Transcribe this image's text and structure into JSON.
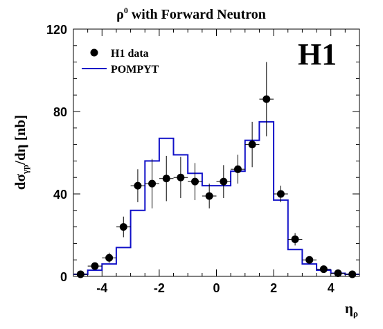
{
  "chart_data": {
    "type": "line",
    "title": "ρ",
    "title_sup": "0",
    "title_rest": " with Forward Neutron",
    "logo": "H1",
    "xlabel": "η",
    "xlabel_sub": "ρ",
    "ylabel": "dσ",
    "ylabel_sub": "γp",
    "ylabel_rest": "/dη [nb]",
    "xlim": [
      -5,
      5
    ],
    "ylim": [
      0,
      120
    ],
    "x_ticks": [
      -4,
      -2,
      0,
      2,
      4
    ],
    "y_ticks": [
      0,
      40,
      80,
      120
    ],
    "legend_position": "top-left",
    "series": [
      {
        "name": "H1 data",
        "kind": "points",
        "color": "#000000",
        "x": [
          -4.75,
          -4.25,
          -3.75,
          -3.25,
          -2.75,
          -2.25,
          -1.75,
          -1.25,
          -0.75,
          -0.25,
          0.25,
          0.75,
          1.25,
          1.75,
          2.25,
          2.75,
          3.25,
          3.75,
          4.25,
          4.75
        ],
        "y": [
          1,
          5,
          9,
          24,
          44,
          45,
          47.5,
          48,
          46,
          39,
          46,
          52,
          64,
          86,
          40,
          18,
          8,
          3.5,
          1.5,
          1
        ],
        "yerr": [
          1,
          1.5,
          2.5,
          5,
          8,
          12,
          11,
          10,
          9,
          6,
          8,
          7,
          11,
          18,
          4,
          3,
          1.5,
          1,
          0.8,
          0.5
        ]
      },
      {
        "name": "POMPYT",
        "kind": "step",
        "color": "#1010c8",
        "edges": [
          -5,
          -4.5,
          -4,
          -3.5,
          -3,
          -2.5,
          -2,
          -1.5,
          -1,
          -0.5,
          0,
          0.5,
          1,
          1.5,
          2,
          2.5,
          3,
          3.5,
          4,
          4.5,
          5
        ],
        "values": [
          1,
          3,
          6,
          14,
          32,
          56,
          67,
          59,
          50,
          44,
          44,
          51,
          66,
          75,
          37,
          13,
          6,
          3,
          1.5,
          1
        ]
      }
    ]
  }
}
